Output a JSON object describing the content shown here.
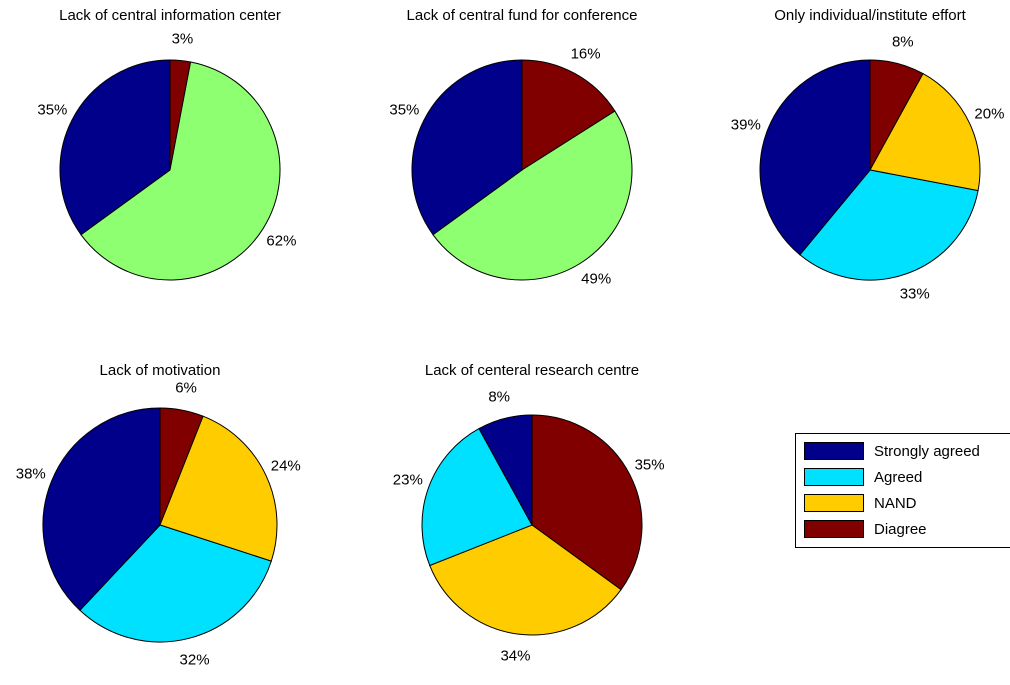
{
  "colors": {
    "strongly_agreed": "#00008b",
    "agreed": "#00e0ff",
    "nand": "#ffcc00",
    "diagree": "#800000",
    "light_green": "#8eff70"
  },
  "legend": {
    "items": [
      {
        "label": "Strongly agreed",
        "color": "#00008b"
      },
      {
        "label": "Agreed",
        "color": "#00e0ff"
      },
      {
        "label": "NAND",
        "color": "#ffcc00"
      },
      {
        "label": "Diagree",
        "color": "#800000"
      }
    ]
  },
  "chart_data": [
    {
      "type": "pie",
      "title": "Lack of central information center",
      "slices": [
        {
          "value": 3,
          "label": "3%",
          "color": "#800000"
        },
        {
          "value": 62,
          "label": "62%",
          "color": "#8eff70"
        },
        {
          "value": 35,
          "label": "35%",
          "color": "#00008b"
        }
      ]
    },
    {
      "type": "pie",
      "title": "Lack of central fund for conference",
      "slices": [
        {
          "value": 16,
          "label": "16%",
          "color": "#800000"
        },
        {
          "value": 49,
          "label": "49%",
          "color": "#8eff70"
        },
        {
          "value": 35,
          "label": "35%",
          "color": "#00008b"
        }
      ]
    },
    {
      "type": "pie",
      "title": "Only individual/institute effort",
      "slices": [
        {
          "value": 8,
          "label": "8%",
          "color": "#800000"
        },
        {
          "value": 20,
          "label": "20%",
          "color": "#ffcc00"
        },
        {
          "value": 33,
          "label": "33%",
          "color": "#00e0ff"
        },
        {
          "value": 39,
          "label": "39%",
          "color": "#00008b"
        }
      ]
    },
    {
      "type": "pie",
      "title": "Lack of motivation",
      "slices": [
        {
          "value": 6,
          "label": "6%",
          "color": "#800000"
        },
        {
          "value": 24,
          "label": "24%",
          "color": "#ffcc00"
        },
        {
          "value": 32,
          "label": "32%",
          "color": "#00e0ff"
        },
        {
          "value": 38,
          "label": "38%",
          "color": "#00008b"
        }
      ]
    },
    {
      "type": "pie",
      "title": "Lack of centeral research centre",
      "slices": [
        {
          "value": 35,
          "label": "35%",
          "color": "#800000"
        },
        {
          "value": 34,
          "label": "34%",
          "color": "#ffcc00"
        },
        {
          "value": 23,
          "label": "23%",
          "color": "#00e0ff"
        },
        {
          "value": 8,
          "label": "8%",
          "color": "#00008b"
        }
      ]
    }
  ]
}
